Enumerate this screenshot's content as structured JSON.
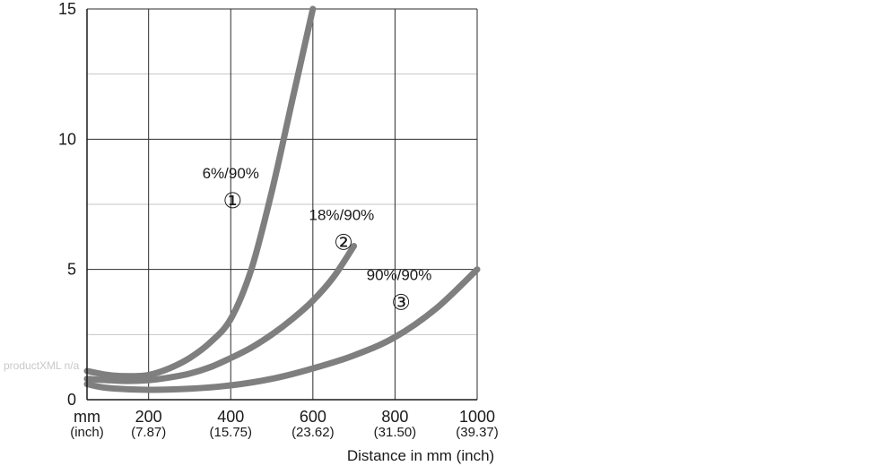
{
  "watermark": "productXML n/a",
  "chart_data": {
    "type": "line",
    "title": "",
    "xlabel": "Distance in mm (inch)",
    "ylabel": "",
    "x_unit_label": "mm",
    "x_unit_sub_label": "(inch)",
    "xlim": [
      50,
      1000
    ],
    "ylim": [
      0,
      15
    ],
    "x_ticks": [
      {
        "value": 200,
        "label": "200",
        "sub": "(7.87)"
      },
      {
        "value": 400,
        "label": "400",
        "sub": "(15.75)"
      },
      {
        "value": 600,
        "label": "600",
        "sub": "(23.62)"
      },
      {
        "value": 800,
        "label": "800",
        "sub": "(31.50)"
      },
      {
        "value": 1000,
        "label": "1000",
        "sub": "(39.37)"
      }
    ],
    "y_ticks": [
      {
        "value": 0,
        "label": "0"
      },
      {
        "value": 5,
        "label": "5"
      },
      {
        "value": 10,
        "label": "10"
      },
      {
        "value": 15,
        "label": "15"
      }
    ],
    "minor_y_gridlines": [
      2.5,
      7.5,
      12.5
    ],
    "grid": true,
    "line_color": "#7f7f7f",
    "series": [
      {
        "name": "6%/90%",
        "number": "①",
        "label_x": 400,
        "label_y": 8.5,
        "x": [
          50,
          100,
          150,
          200,
          250,
          300,
          350,
          400,
          450,
          500,
          550,
          600
        ],
        "y": [
          1.1,
          0.95,
          0.9,
          0.95,
          1.2,
          1.6,
          2.2,
          3.1,
          5.0,
          8.0,
          11.5,
          15.0
        ]
      },
      {
        "name": "18%/90%",
        "number": "②",
        "label_x": 670,
        "label_y": 6.9,
        "x": [
          50,
          100,
          150,
          200,
          250,
          300,
          350,
          400,
          450,
          500,
          550,
          600,
          650,
          700
        ],
        "y": [
          0.8,
          0.75,
          0.72,
          0.75,
          0.85,
          1.0,
          1.25,
          1.6,
          2.0,
          2.5,
          3.1,
          3.8,
          4.7,
          5.9
        ]
      },
      {
        "name": "90%/90%",
        "number": "③",
        "label_x": 810,
        "label_y": 4.6,
        "x": [
          50,
          100,
          200,
          300,
          400,
          500,
          600,
          700,
          800,
          900,
          1000
        ],
        "y": [
          0.6,
          0.45,
          0.38,
          0.42,
          0.55,
          0.8,
          1.2,
          1.7,
          2.4,
          3.5,
          5.0
        ]
      }
    ]
  }
}
